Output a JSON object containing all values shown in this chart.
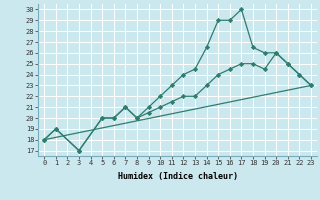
{
  "xlabel": "Humidex (Indice chaleur)",
  "background_color": "#cce8ef",
  "grid_color": "#ffffff",
  "line_color": "#2e7d6e",
  "xlim": [
    -0.5,
    23.5
  ],
  "ylim": [
    16.5,
    30.5
  ],
  "xticks": [
    0,
    1,
    2,
    3,
    4,
    5,
    6,
    7,
    8,
    9,
    10,
    11,
    12,
    13,
    14,
    15,
    16,
    17,
    18,
    19,
    20,
    21,
    22,
    23
  ],
  "yticks": [
    17,
    18,
    19,
    20,
    21,
    22,
    23,
    24,
    25,
    26,
    27,
    28,
    29,
    30
  ],
  "line1_x": [
    0,
    23
  ],
  "line1_y": [
    18,
    23
  ],
  "line2_x": [
    0,
    1,
    3,
    5,
    6,
    7,
    8,
    9,
    10,
    11,
    12,
    13,
    14,
    15,
    16,
    17,
    18,
    19,
    20,
    21,
    22,
    23
  ],
  "line2_y": [
    18,
    19,
    17,
    20,
    20,
    21,
    20,
    20.5,
    21,
    21.5,
    22,
    22,
    23,
    24,
    24.5,
    25,
    25,
    24.5,
    26,
    25,
    24,
    23
  ],
  "line3_x": [
    0,
    1,
    3,
    5,
    6,
    7,
    8,
    9,
    10,
    11,
    12,
    13,
    14,
    15,
    16,
    17,
    18,
    19,
    20,
    21,
    22,
    23
  ],
  "line3_y": [
    18,
    19,
    17,
    20,
    20,
    21,
    20,
    21,
    22,
    23,
    24,
    24.5,
    26.5,
    29,
    29,
    30,
    26.5,
    26,
    26,
    25,
    24,
    23
  ]
}
